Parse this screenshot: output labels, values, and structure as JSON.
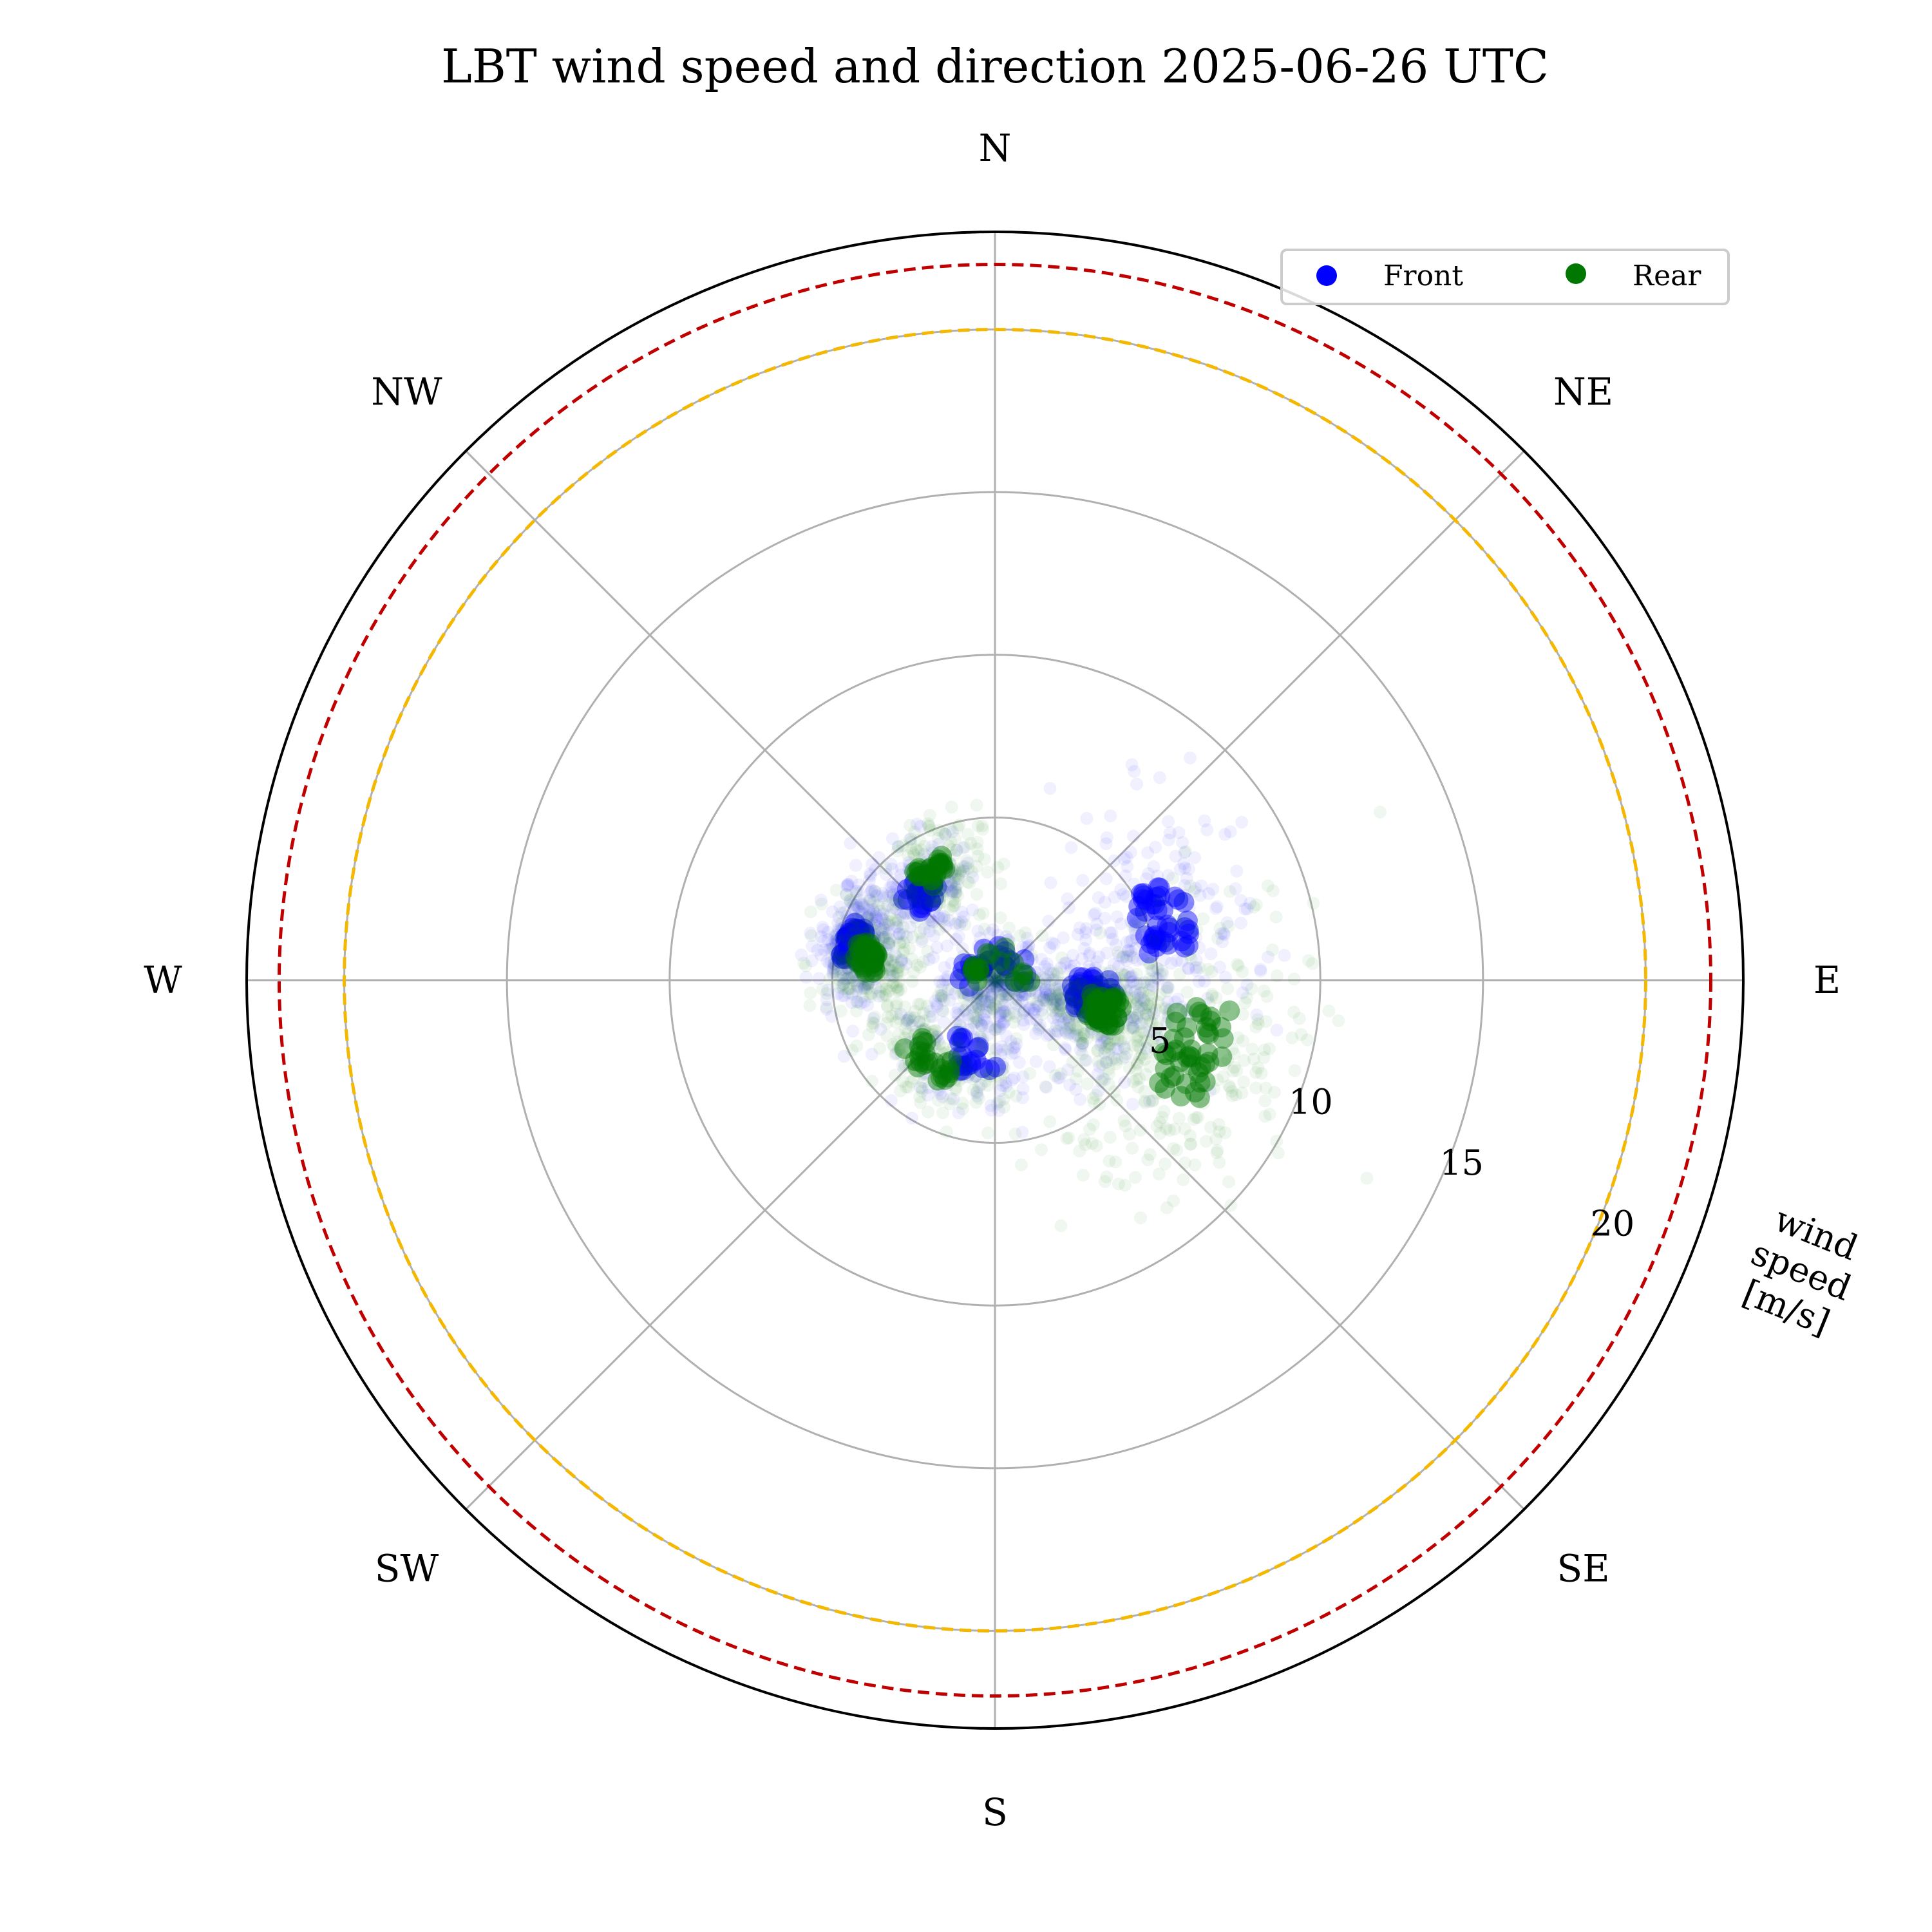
{
  "chart_data": {
    "type": "scatter",
    "projection": "polar",
    "title": "LBT wind speed and direction 2025-06-26 UTC",
    "direction_labels": [
      "N",
      "NE",
      "E",
      "SE",
      "S",
      "SW",
      "W",
      "NW"
    ],
    "direction_angles_deg": [
      0,
      45,
      90,
      135,
      180,
      225,
      270,
      315
    ],
    "radial_axis": {
      "label_lines": [
        "wind",
        "speed",
        "[m/s]"
      ],
      "ticks": [
        5,
        10,
        15,
        20
      ],
      "range": [
        0,
        23
      ],
      "grid": true
    },
    "reference_circles": [
      {
        "value": 20,
        "color": "#f5b800",
        "style": "dashed"
      },
      {
        "value": 22,
        "color": "#c00000",
        "style": "dashed"
      }
    ],
    "legend": {
      "placement": "top-right",
      "columns": 2
    },
    "series": [
      {
        "name": "Front",
        "color": "#0000ff",
        "clusters": [
          {
            "dir_deg": 285,
            "speed": 4.5,
            "spread_dir": 12,
            "spread_speed": 0.6,
            "count": 260
          },
          {
            "dir_deg": 320,
            "speed": 3.5,
            "spread_dir": 15,
            "spread_speed": 0.8,
            "count": 160
          },
          {
            "dir_deg": 200,
            "speed": 2.5,
            "spread_dir": 35,
            "spread_speed": 1.0,
            "count": 160
          },
          {
            "dir_deg": 100,
            "speed": 3.0,
            "spread_dir": 20,
            "spread_speed": 1.5,
            "count": 260
          },
          {
            "dir_deg": 70,
            "speed": 5.5,
            "spread_dir": 18,
            "spread_speed": 1.6,
            "count": 200
          },
          {
            "dir_deg": 0,
            "speed": 0.8,
            "spread_dir": 180,
            "spread_speed": 0.6,
            "count": 160
          }
        ]
      },
      {
        "name": "Rear",
        "color": "#007700",
        "clusters": [
          {
            "dir_deg": 280,
            "speed": 4.0,
            "spread_dir": 12,
            "spread_speed": 0.7,
            "count": 240
          },
          {
            "dir_deg": 330,
            "speed": 3.8,
            "spread_dir": 12,
            "spread_speed": 0.8,
            "count": 160
          },
          {
            "dir_deg": 220,
            "speed": 3.2,
            "spread_dir": 25,
            "spread_speed": 0.8,
            "count": 180
          },
          {
            "dir_deg": 105,
            "speed": 3.5,
            "spread_dir": 12,
            "spread_speed": 1.0,
            "count": 240
          },
          {
            "dir_deg": 110,
            "speed": 6.5,
            "spread_dir": 22,
            "spread_speed": 1.8,
            "count": 300
          },
          {
            "dir_deg": 0,
            "speed": 0.8,
            "spread_dir": 180,
            "spread_speed": 0.6,
            "count": 140
          }
        ]
      }
    ]
  }
}
